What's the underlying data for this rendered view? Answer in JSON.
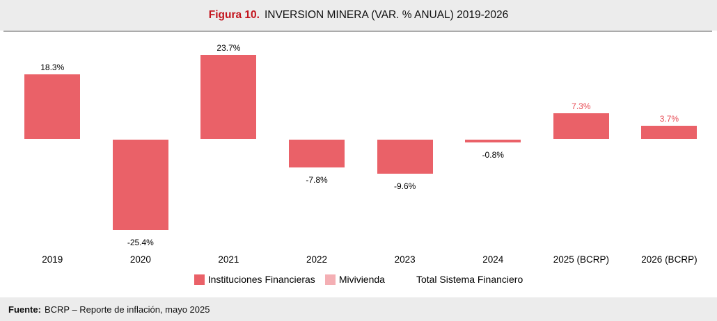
{
  "title": {
    "prefix": "Figura 10.",
    "text": "INVERSION MINERA (VAR. % ANUAL) 2019-2026"
  },
  "chart_data": {
    "type": "bar",
    "categories": [
      "2019",
      "2020",
      "2021",
      "2022",
      "2023",
      "2024",
      "2025 (BCRP)",
      "2026 (BCRP)"
    ],
    "values": [
      18.3,
      -25.4,
      23.7,
      -7.8,
      -9.6,
      -0.8,
      7.3,
      3.7
    ],
    "labels": [
      "18.3%",
      "-25.4%",
      "23.7%",
      "-7.8%",
      "-9.6%",
      "-0.8%",
      "7.3%",
      "3.7%"
    ],
    "label_colors": [
      "#000000",
      "#000000",
      "#000000",
      "#000000",
      "#000000",
      "#000000",
      "#E84C55",
      "#E84C55"
    ],
    "bar_color": "#EA6168",
    "zero_line_color": "#ABABAB",
    "ylim": [
      -28,
      26
    ],
    "grid": false,
    "legend_position": "bottom",
    "legend": [
      {
        "label": "Instituciones Financieras",
        "swatch": "#EA6168"
      },
      {
        "label": "Mivivienda",
        "swatch": "#F4AFB4"
      },
      {
        "label": "Total Sistema Financiero",
        "swatch": null
      }
    ]
  },
  "colors": {
    "figure_red": "#C3151E",
    "band_gray": "#ECECEC",
    "bar": "#EA6168",
    "mivivienda": "#F4AFB4",
    "zero_line": "#ABABAB"
  },
  "source": {
    "label": "Fuente:",
    "text": "BCRP –  Reporte de inflación, mayo 2025"
  }
}
